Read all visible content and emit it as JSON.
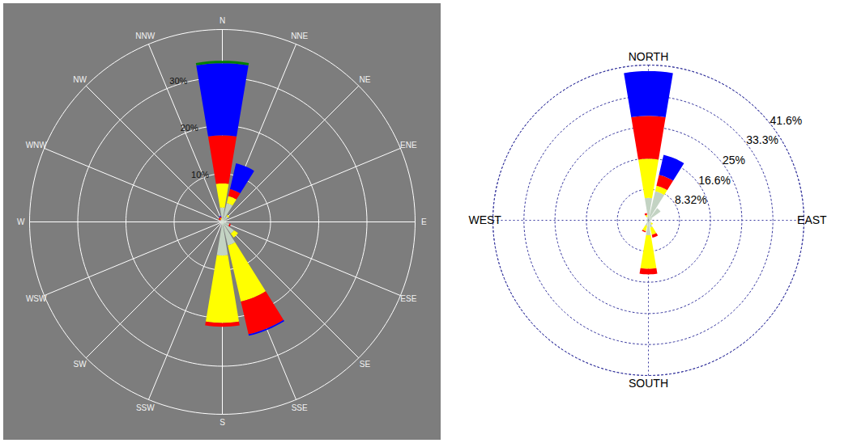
{
  "chart_data": [
    {
      "type": "wind_rose",
      "categories": [
        "N",
        "NNE",
        "NE",
        "ENE",
        "E",
        "ESE",
        "SE",
        "SSE",
        "S",
        "SSW",
        "SW",
        "WSW",
        "W",
        "WNW",
        "NW",
        "NNW"
      ],
      "rlim": [
        0,
        40
      ],
      "rticks": [
        {
          "value": 10,
          "label": "10%"
        },
        {
          "value": 20,
          "label": "20%"
        },
        {
          "value": 30,
          "label": "30%"
        }
      ],
      "stacked": true,
      "grid": true,
      "line_style": "solid",
      "series": [
        {
          "color": "#c3d3c3",
          "values": [
            3,
            4,
            1.5,
            1,
            0.5,
            1.5,
            3,
            5,
            7,
            0.5,
            0.5,
            0.3,
            0.5,
            0.5,
            0.5,
            0.5
          ]
        },
        {
          "color": "#ffff00",
          "values": [
            5,
            1.5,
            0.3,
            0,
            0,
            0,
            1,
            12,
            14,
            0,
            0,
            0,
            0,
            0,
            0,
            0.3
          ]
        },
        {
          "color": "#ff0000",
          "values": [
            10,
            1.5,
            0,
            0,
            0,
            0.3,
            0,
            7,
            0.8,
            0,
            0,
            0,
            0,
            0,
            0.5,
            0.3
          ]
        },
        {
          "color": "#0000ff",
          "values": [
            15,
            5.5,
            0,
            0,
            0,
            0,
            0,
            0.3,
            0,
            0,
            0,
            0,
            0,
            0,
            0,
            0.2
          ]
        },
        {
          "color": "#008000",
          "values": [
            0.5,
            0,
            0,
            0,
            0,
            0,
            0,
            0,
            0,
            0,
            0,
            0,
            0,
            0,
            0,
            0
          ]
        }
      ]
    },
    {
      "type": "wind_rose",
      "categories": [
        "NORTH",
        null,
        null,
        null,
        "EAST",
        null,
        null,
        null,
        "SOUTH",
        null,
        null,
        null,
        "WEST",
        null,
        null,
        null
      ],
      "rlim": [
        0,
        41.6
      ],
      "rticks": [
        {
          "value": 8.32,
          "label": "8.32%"
        },
        {
          "value": 16.6,
          "label": "16.6%"
        },
        {
          "value": 25,
          "label": "25%"
        },
        {
          "value": 33.3,
          "label": "33.3%"
        },
        {
          "value": 41.6,
          "label": "41.6%"
        }
      ],
      "stacked": true,
      "grid": true,
      "line_style": "dotted",
      "series": [
        {
          "color": "#c3d3c3",
          "values": [
            6,
            8,
            4,
            1,
            0.5,
            0.5,
            1,
            2,
            4,
            1.5,
            0.5,
            0.5,
            0.5,
            0.5,
            0.5,
            1
          ]
        },
        {
          "color": "#ffff00",
          "values": [
            10.5,
            1.5,
            0,
            0,
            0,
            0,
            0.5,
            2,
            9,
            1.5,
            0,
            0,
            0,
            0,
            0,
            0.5
          ]
        },
        {
          "color": "#ff0000",
          "values": [
            11.5,
            3,
            0,
            0,
            0,
            0,
            0,
            0.8,
            1.5,
            0.3,
            0,
            0,
            0,
            0,
            0,
            0.5
          ]
        },
        {
          "color": "#0000ff",
          "values": [
            12,
            5.5,
            0,
            0,
            0,
            0,
            0,
            0,
            0,
            0,
            0,
            0,
            0,
            0,
            0,
            0
          ]
        }
      ]
    }
  ]
}
